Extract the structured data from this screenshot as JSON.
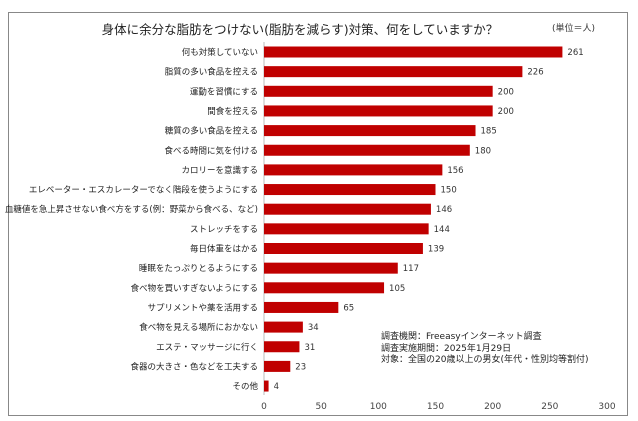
{
  "chart_data": {
    "type": "bar",
    "orientation": "horizontal",
    "title": "身体に余分な脂肪をつけない(脂肪を減らす)対策、何をしていますか？",
    "unit_label": "(単位＝人)",
    "categories": [
      "何も対策していない",
      "脂質の多い食品を控える",
      "運動を習慣にする",
      "間食を控える",
      "糖質の多い食品を控える",
      "食べる時間に気を付ける",
      "カロリーを意識する",
      "エレベーター・エスカレーターでなく階段を使うようにする",
      "血糖値を急上昇させない食べ方をする(例：野菜から食べる、など)",
      "ストレッチをする",
      "毎日体重をはかる",
      "睡眠をたっぷりとるようにする",
      "食べ物を買いすぎないようにする",
      "サプリメントや薬を活用する",
      "食べ物を見える場所におかない",
      "エステ・マッサージに行く",
      "食器の大きさ・色などを工夫する",
      "その他"
    ],
    "values": [
      261,
      226,
      200,
      200,
      185,
      180,
      156,
      150,
      146,
      144,
      139,
      117,
      105,
      65,
      34,
      31,
      23,
      4
    ],
    "xlim": [
      0,
      300
    ],
    "xticks": [
      0,
      50,
      100,
      150,
      200,
      250,
      300
    ],
    "grid": false,
    "bar_color": "#C00000",
    "notes": [
      "調査機関：Freeasyインターネット調査",
      "調査実施期間：2025年1月29日",
      "対象：全国の20歳以上の男女(年代・性別均等割付)"
    ]
  }
}
